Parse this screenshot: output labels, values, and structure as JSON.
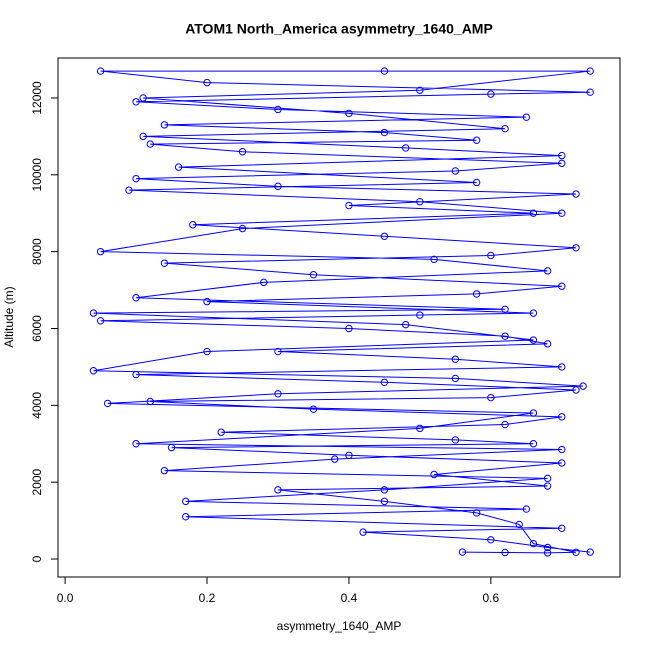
{
  "chart_data": {
    "type": "line",
    "title": "ATOM1 North_America asymmetry_1640_AMP",
    "xlabel": "asymmetry_1640_AMP",
    "ylabel": "Altitude (m)",
    "xlim": [
      -0.01,
      0.782
    ],
    "ylim": [
      -468,
      13040
    ],
    "xticks": [
      {
        "value": 0,
        "label": "0.0"
      },
      0.2,
      0.4,
      0.6
    ],
    "yticks": [
      0,
      2000,
      4000,
      6000,
      8000,
      10000,
      12000
    ],
    "series": [
      {
        "color": "#0000ff",
        "x": [
          0.56,
          0.62,
          0.68,
          0.72,
          0.66,
          0.64,
          0.58,
          0.45,
          0.3,
          0.68,
          0.52,
          0.7,
          0.4,
          0.15,
          0.66,
          0.55,
          0.22,
          0.62,
          0.7,
          0.35,
          0.12,
          0.6,
          0.72,
          0.45,
          0.1,
          0.7,
          0.55,
          0.3,
          0.68,
          0.62,
          0.4,
          0.05,
          0.5,
          0.66,
          0.2,
          0.58,
          0.7,
          0.35,
          0.14,
          0.6,
          0.72,
          0.45,
          0.18,
          0.66,
          0.4,
          0.72,
          0.3,
          0.1,
          0.55,
          0.7,
          0.25,
          0.12,
          0.58,
          0.45,
          0.14,
          0.65,
          0.3,
          0.1,
          0.6,
          0.74,
          0.2,
          0.05,
          0.45,
          0.74,
          0.5,
          0.11,
          0.4,
          0.62,
          0.11,
          0.48,
          0.7,
          0.16,
          0.58,
          0.09,
          0.5,
          0.7,
          0.25,
          0.05,
          0.52,
          0.68,
          0.28,
          0.1,
          0.62,
          0.04,
          0.48,
          0.66,
          0.2,
          0.04,
          0.55,
          0.73,
          0.3,
          0.06,
          0.66,
          0.5,
          0.1,
          0.7,
          0.38,
          0.14,
          0.68,
          0.45,
          0.17,
          0.65,
          0.17,
          0.7,
          0.42,
          0.6,
          0.68,
          0.74
        ],
        "values": [
          180,
          170,
          160,
          175,
          400,
          900,
          1200,
          1500,
          1800,
          1900,
          2200,
          2500,
          2700,
          2900,
          3000,
          3100,
          3300,
          3500,
          3700,
          3900,
          4100,
          4200,
          4400,
          4600,
          4800,
          5000,
          5200,
          5400,
          5600,
          5800,
          6000,
          6200,
          6350,
          6400,
          6700,
          6900,
          7100,
          7400,
          7700,
          7900,
          8100,
          8400,
          8700,
          9000,
          9200,
          9500,
          9700,
          9900,
          10100,
          10300,
          10600,
          10800,
          10900,
          11100,
          11300,
          11500,
          11700,
          11900,
          12100,
          12150,
          12400,
          12700,
          12700,
          12700,
          12200,
          12000,
          11600,
          11200,
          11000,
          10700,
          10500,
          10200,
          9800,
          9600,
          9300,
          9000,
          8600,
          8000,
          7800,
          7500,
          7200,
          6800,
          6500,
          6400,
          6100,
          5700,
          5400,
          4900,
          4700,
          4500,
          4300,
          4050,
          3800,
          3400,
          3000,
          2850,
          2600,
          2300,
          2100,
          1800,
          1500,
          1300,
          1100,
          800,
          700,
          500,
          300,
          180
        ]
      }
    ]
  }
}
